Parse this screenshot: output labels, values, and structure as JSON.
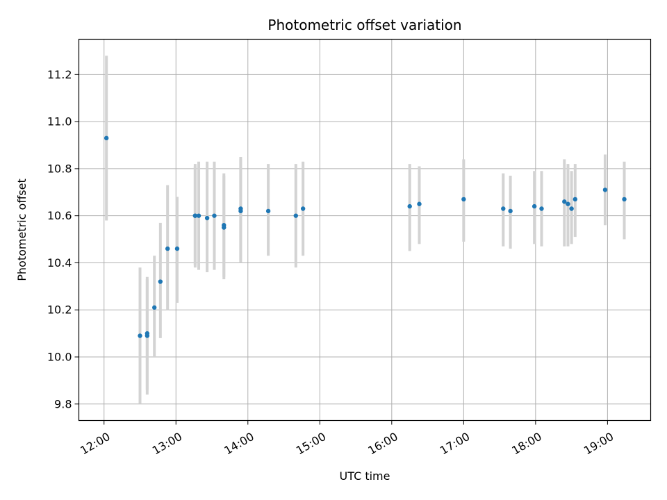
{
  "chart_data": {
    "type": "scatter",
    "title": "Photometric offset variation",
    "xlabel": "UTC time",
    "ylabel": "Photometric offset",
    "x_axis": "time",
    "xlim": [
      "11:39",
      "19:36"
    ],
    "ylim": [
      9.73,
      11.35
    ],
    "x_ticks": [
      "12:00",
      "13:00",
      "14:00",
      "15:00",
      "16:00",
      "17:00",
      "18:00",
      "19:00"
    ],
    "y_ticks": [
      9.8,
      10.0,
      10.2,
      10.4,
      10.6,
      10.8,
      11.0,
      11.2
    ],
    "y_tick_labels": [
      "9.8",
      "10.0",
      "10.2",
      "10.4",
      "10.6",
      "10.8",
      "11.0",
      "11.2"
    ],
    "grid": true,
    "point_color": "#1f77b4",
    "errorbar_color": "#d3d3d3",
    "points": [
      {
        "time": "12:02",
        "y": 10.93,
        "y_low": 10.58,
        "y_high": 11.28
      },
      {
        "time": "12:30",
        "y": 10.09,
        "y_low": 9.8,
        "y_high": 10.38
      },
      {
        "time": "12:36",
        "y": 10.1,
        "y_low": 9.86,
        "y_high": 10.34
      },
      {
        "time": "12:36",
        "y": 10.09,
        "y_low": 9.84,
        "y_high": 10.33
      },
      {
        "time": "12:42",
        "y": 10.21,
        "y_low": 10.0,
        "y_high": 10.43
      },
      {
        "time": "12:47",
        "y": 10.32,
        "y_low": 10.08,
        "y_high": 10.57
      },
      {
        "time": "12:53",
        "y": 10.46,
        "y_low": 10.2,
        "y_high": 10.73
      },
      {
        "time": "13:01",
        "y": 10.46,
        "y_low": 10.23,
        "y_high": 10.68
      },
      {
        "time": "13:16",
        "y": 10.6,
        "y_low": 10.38,
        "y_high": 10.82
      },
      {
        "time": "13:16",
        "y": 10.6,
        "y_low": 10.39,
        "y_high": 10.81
      },
      {
        "time": "13:19",
        "y": 10.6,
        "y_low": 10.37,
        "y_high": 10.83
      },
      {
        "time": "13:26",
        "y": 10.59,
        "y_low": 10.36,
        "y_high": 10.83
      },
      {
        "time": "13:32",
        "y": 10.6,
        "y_low": 10.37,
        "y_high": 10.83
      },
      {
        "time": "13:40",
        "y": 10.56,
        "y_low": 10.33,
        "y_high": 10.78
      },
      {
        "time": "13:40",
        "y": 10.55,
        "y_low": 10.34,
        "y_high": 10.77
      },
      {
        "time": "13:54",
        "y": 10.63,
        "y_low": 10.4,
        "y_high": 10.85
      },
      {
        "time": "13:54",
        "y": 10.62,
        "y_low": 10.41,
        "y_high": 10.84
      },
      {
        "time": "14:17",
        "y": 10.62,
        "y_low": 10.43,
        "y_high": 10.82
      },
      {
        "time": "14:40",
        "y": 10.6,
        "y_low": 10.38,
        "y_high": 10.82
      },
      {
        "time": "14:46",
        "y": 10.63,
        "y_low": 10.43,
        "y_high": 10.83
      },
      {
        "time": "16:15",
        "y": 10.64,
        "y_low": 10.45,
        "y_high": 10.82
      },
      {
        "time": "16:23",
        "y": 10.65,
        "y_low": 10.48,
        "y_high": 10.81
      },
      {
        "time": "17:00",
        "y": 10.67,
        "y_low": 10.49,
        "y_high": 10.84
      },
      {
        "time": "17:33",
        "y": 10.63,
        "y_low": 10.47,
        "y_high": 10.78
      },
      {
        "time": "17:39",
        "y": 10.62,
        "y_low": 10.46,
        "y_high": 10.77
      },
      {
        "time": "17:59",
        "y": 10.64,
        "y_low": 10.48,
        "y_high": 10.79
      },
      {
        "time": "18:05",
        "y": 10.63,
        "y_low": 10.47,
        "y_high": 10.79
      },
      {
        "time": "18:24",
        "y": 10.66,
        "y_low": 10.47,
        "y_high": 10.84
      },
      {
        "time": "18:27",
        "y": 10.65,
        "y_low": 10.47,
        "y_high": 10.82
      },
      {
        "time": "18:30",
        "y": 10.63,
        "y_low": 10.48,
        "y_high": 10.79
      },
      {
        "time": "18:33",
        "y": 10.67,
        "y_low": 10.51,
        "y_high": 10.82
      },
      {
        "time": "18:58",
        "y": 10.71,
        "y_low": 10.56,
        "y_high": 10.86
      },
      {
        "time": "19:14",
        "y": 10.67,
        "y_low": 10.5,
        "y_high": 10.83
      }
    ]
  }
}
